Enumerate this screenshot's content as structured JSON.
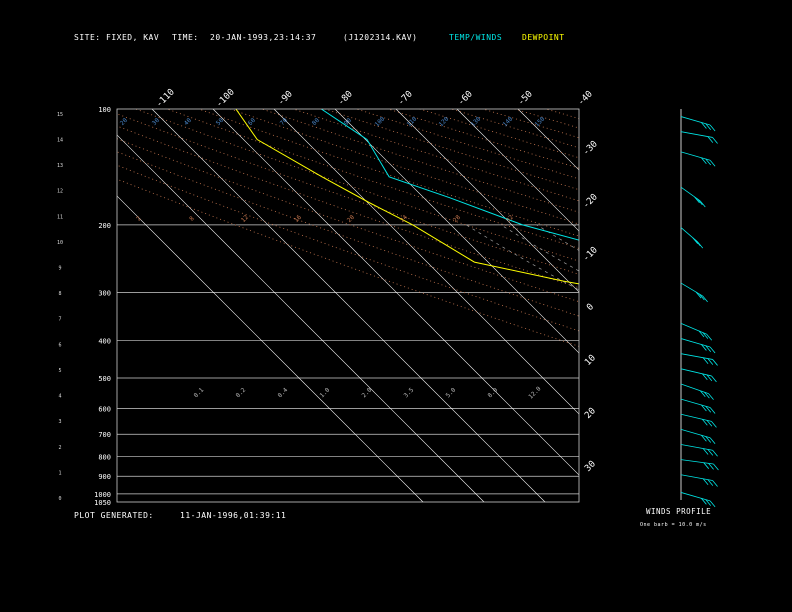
{
  "header": {
    "site_label": "SITE:",
    "site_value": "FIXED, KAV",
    "time_label": "TIME:",
    "time_value": "20-JAN-1993,23:14:37",
    "file_value": "(J1202314.KAV)",
    "legend_temp": "TEMP/WINDS",
    "legend_dew": "DEWPOINT"
  },
  "footer": {
    "generated_label": "PLOT GENERATED:",
    "generated_value": "11-JAN-1996,01:39:11",
    "winds_title": "WINDS PROFILE",
    "winds_note": "One barb = 10.0 m/s"
  },
  "colors": {
    "temp": "#00e5e5",
    "dew": "#ffff00",
    "isotherm": "#ffffff",
    "dry_adiabat": "#c87850",
    "moist_adiabat": "#a0a0a0",
    "mixing_ratio": "#4a86c8"
  },
  "chart_data": {
    "type": "line",
    "xlabel": "",
    "ylabel": "",
    "pressure_levels": [
      100,
      200,
      300,
      400,
      500,
      600,
      700,
      800,
      900,
      1000,
      1050
    ],
    "height_km_ticks": [
      "0",
      "1",
      "2",
      "3",
      "4",
      "5",
      "6",
      "7",
      "8",
      "9",
      "10",
      "11",
      "12",
      "13",
      "14",
      "15"
    ],
    "isotherm_labels_top": [
      "-110",
      "-100",
      "-90",
      "-80",
      "-70",
      "-60",
      "-50",
      "-40"
    ],
    "isotherm_labels_right": [
      "-30",
      "-20",
      "-10",
      "0",
      "10",
      "20",
      "30"
    ],
    "mixing_ratio_labels_upper": [
      "20",
      "30",
      "40",
      "50",
      "60",
      "70",
      "80",
      "90",
      "100",
      "110",
      "120",
      "130",
      "140",
      "150"
    ],
    "dry_adiabat_labels": [
      "2",
      "8",
      "12",
      "16",
      "20",
      "24",
      "28",
      "32"
    ],
    "moist_labels": [
      "0.1",
      "0.2",
      "0.4",
      "1.0",
      "2.0",
      "3.5",
      "5.0",
      "8.0",
      "12.0"
    ],
    "series": [
      {
        "name": "TEMP/WINDS",
        "points": [
          [
            100,
            -82
          ],
          [
            120,
            -80
          ],
          [
            150,
            -82
          ],
          [
            170,
            -76
          ],
          [
            200,
            -68
          ],
          [
            250,
            -52
          ],
          [
            300,
            -40
          ],
          [
            350,
            -30
          ],
          [
            400,
            -22
          ],
          [
            450,
            -14
          ],
          [
            500,
            -9
          ],
          [
            550,
            -3
          ],
          [
            600,
            2
          ],
          [
            650,
            6
          ],
          [
            700,
            10
          ],
          [
            750,
            14
          ],
          [
            800,
            17
          ],
          [
            850,
            21
          ],
          [
            900,
            23
          ],
          [
            950,
            26
          ],
          [
            1000,
            29
          ],
          [
            1040,
            32
          ]
        ]
      },
      {
        "name": "DEWPOINT",
        "points": [
          [
            100,
            -96
          ],
          [
            120,
            -98
          ],
          [
            150,
            -93
          ],
          [
            175,
            -90
          ],
          [
            200,
            -86
          ],
          [
            230,
            -84
          ],
          [
            250,
            -82
          ],
          [
            280,
            -71
          ],
          [
            300,
            -62
          ],
          [
            330,
            -56
          ],
          [
            400,
            -40
          ],
          [
            450,
            -32
          ],
          [
            500,
            -24
          ],
          [
            550,
            -17
          ],
          [
            600,
            -10
          ],
          [
            650,
            -6
          ],
          [
            700,
            -1
          ],
          [
            750,
            3
          ],
          [
            800,
            6
          ],
          [
            850,
            10
          ],
          [
            900,
            12
          ],
          [
            950,
            15
          ],
          [
            1000,
            18
          ],
          [
            1040,
            20
          ]
        ]
      }
    ],
    "winds": [
      {
        "h": 0.3,
        "dir": 300,
        "spd": 35
      },
      {
        "h": 1.0,
        "dir": 290,
        "spd": 40
      },
      {
        "h": 1.6,
        "dir": 285,
        "spd": 45
      },
      {
        "h": 2.2,
        "dir": 290,
        "spd": 40
      },
      {
        "h": 2.8,
        "dir": 300,
        "spd": 45
      },
      {
        "h": 3.4,
        "dir": 295,
        "spd": 50
      },
      {
        "h": 4.0,
        "dir": 300,
        "spd": 55
      },
      {
        "h": 4.6,
        "dir": 305,
        "spd": 50
      },
      {
        "h": 5.2,
        "dir": 295,
        "spd": 50
      },
      {
        "h": 5.8,
        "dir": 290,
        "spd": 45
      },
      {
        "h": 6.4,
        "dir": 300,
        "spd": 40
      },
      {
        "h": 7.0,
        "dir": 310,
        "spd": 35
      },
      {
        "h": 8.6,
        "dir": 320,
        "spd": 30
      },
      {
        "h": 10.8,
        "dir": 330,
        "spd": 35
      },
      {
        "h": 12.4,
        "dir": 325,
        "spd": 40
      },
      {
        "h": 13.8,
        "dir": 300,
        "spd": 30
      },
      {
        "h": 14.6,
        "dir": 290,
        "spd": 25
      },
      {
        "h": 15.2,
        "dir": 300,
        "spd": 45
      }
    ]
  }
}
